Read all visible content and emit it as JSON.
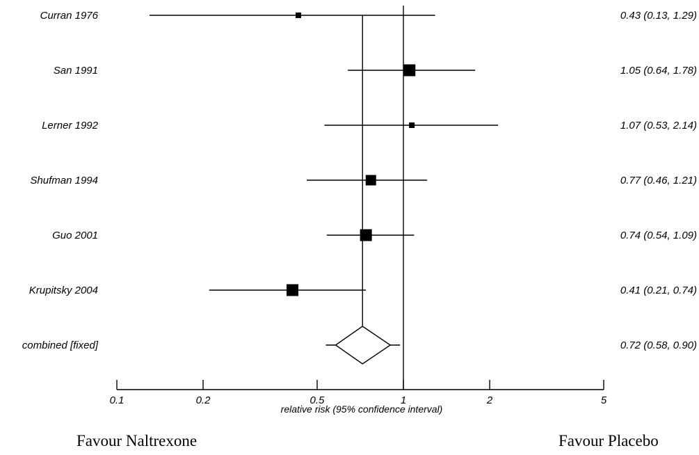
{
  "chart_data": {
    "type": "forest",
    "xlabel": "relative risk (95% confidence interval)",
    "xscale": "log",
    "xticks": [
      0.1,
      0.2,
      0.5,
      1,
      2,
      5
    ],
    "xtick_labels": [
      "0.1",
      "0.2",
      "0.5",
      "1",
      "2",
      "5"
    ],
    "xlim": [
      0.1,
      5
    ],
    "reference_line": 1,
    "pooled_line": 0.72,
    "studies": [
      {
        "label": "Curran 1976",
        "estimate": 0.43,
        "lower": 0.13,
        "upper": 1.29,
        "ci_text": "0.43 (0.13, 1.29)",
        "weight": "small"
      },
      {
        "label": "San 1991",
        "estimate": 1.05,
        "lower": 0.64,
        "upper": 1.78,
        "ci_text": "1.05 (0.64, 1.78)",
        "weight": "large"
      },
      {
        "label": "Lerner 1992",
        "estimate": 1.07,
        "lower": 0.53,
        "upper": 2.14,
        "ci_text": "1.07 (0.53, 2.14)",
        "weight": "small"
      },
      {
        "label": "Shufman 1994",
        "estimate": 0.77,
        "lower": 0.46,
        "upper": 1.21,
        "ci_text": "0.77 (0.46, 1.21)",
        "weight": "medium"
      },
      {
        "label": "Guo 2001",
        "estimate": 0.74,
        "lower": 0.54,
        "upper": 1.09,
        "ci_text": "0.74 (0.54, 1.09)",
        "weight": "large"
      },
      {
        "label": "Krupitsky 2004",
        "estimate": 0.41,
        "lower": 0.21,
        "upper": 0.74,
        "ci_text": "0.41 (0.21, 0.74)",
        "weight": "large"
      }
    ],
    "combined": {
      "label": "combined [fixed]",
      "estimate": 0.72,
      "lower": 0.58,
      "upper": 0.9,
      "ci_text": "0.72 (0.58, 0.90)"
    }
  },
  "annotations": {
    "favour_left": "Favour Naltrexone",
    "favour_right": "Favour Placebo"
  }
}
